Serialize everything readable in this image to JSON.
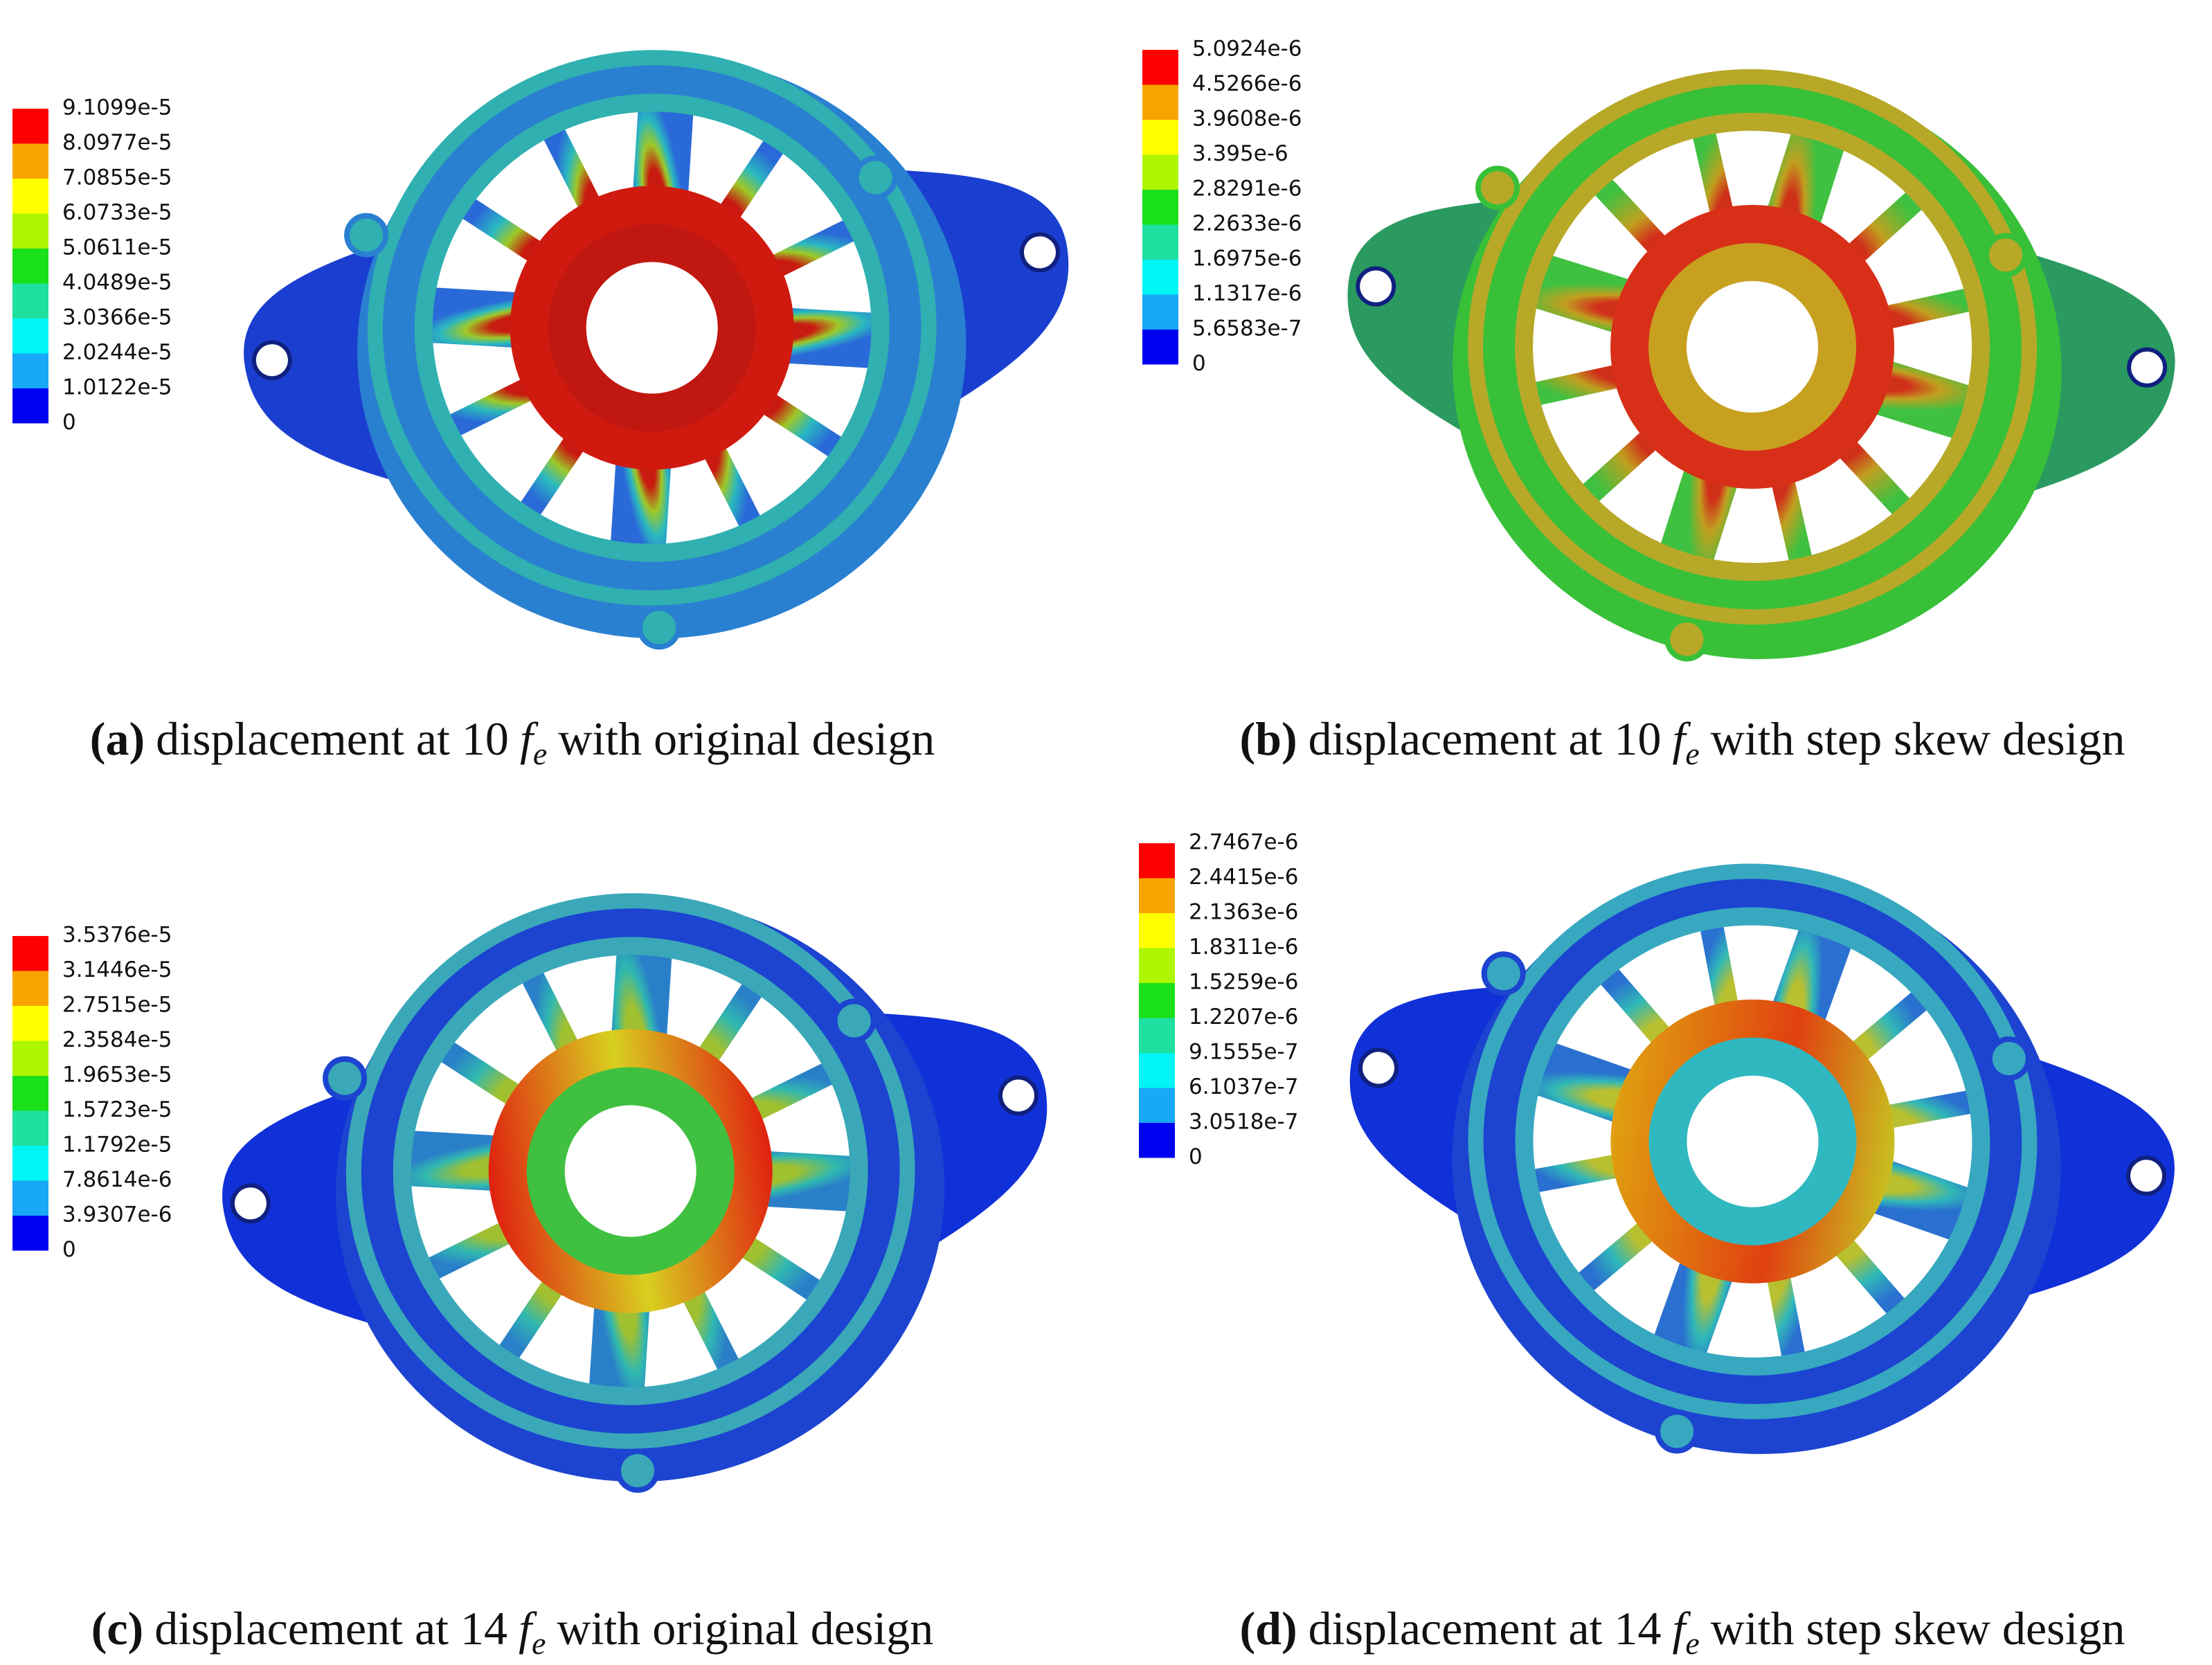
{
  "panels": [
    {
      "legend": [
        "9.1099e-5",
        "8.0977e-5",
        "7.0855e-5",
        "6.0733e-5",
        "5.0611e-5",
        "4.0489e-5",
        "3.0366e-5",
        "2.0244e-5",
        "1.0122e-5",
        "0"
      ],
      "caption": {
        "label": "(a)",
        "text_before": "displacement at 10",
        "symbol": "f",
        "subscript": "e",
        "text_after": "with original design"
      }
    },
    {
      "legend": [
        "5.0924e-6",
        "4.5266e-6",
        "3.9608e-6",
        "3.395e-6",
        "2.8291e-6",
        "2.2633e-6",
        "1.6975e-6",
        "1.1317e-6",
        "5.6583e-7",
        "0"
      ],
      "caption": {
        "label": "(b)",
        "text_before": "displacement at 10",
        "symbol": "f",
        "subscript": "e",
        "text_after": "with step skew design"
      }
    },
    {
      "legend": [
        "3.5376e-5",
        "3.1446e-5",
        "2.7515e-5",
        "2.3584e-5",
        "1.9653e-5",
        "1.5723e-5",
        "1.1792e-5",
        "7.8614e-6",
        "3.9307e-6",
        "0"
      ],
      "caption": {
        "label": "(c)",
        "text_before": "displacement at 14",
        "symbol": "f",
        "subscript": "e",
        "text_after": "with original design"
      }
    },
    {
      "legend": [
        "2.7467e-6",
        "2.4415e-6",
        "2.1363e-6",
        "1.8311e-6",
        "1.5259e-6",
        "1.2207e-6",
        "9.1555e-7",
        "6.1037e-7",
        "3.0518e-7",
        "0"
      ],
      "caption": {
        "label": "(d)",
        "text_before": "displacement at 14",
        "symbol": "f",
        "subscript": "e",
        "text_after": "with step skew design"
      }
    }
  ]
}
